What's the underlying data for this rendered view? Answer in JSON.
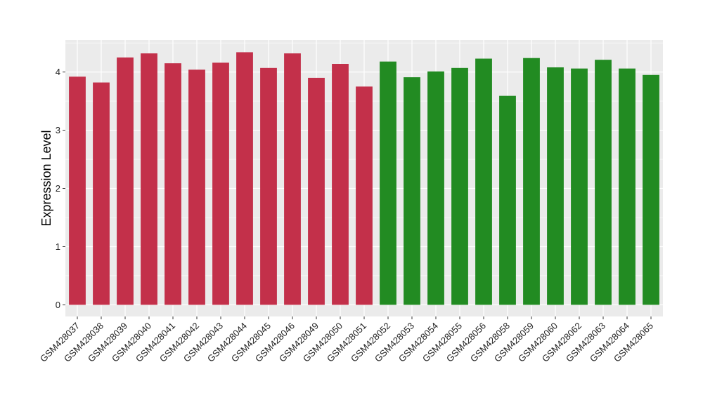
{
  "chart_data": {
    "type": "bar",
    "ylabel": "Expression Level",
    "xlabel": "",
    "title": "",
    "ylim": [
      -0.2,
      4.55
    ],
    "yticks": [
      0,
      1,
      2,
      3,
      4
    ],
    "grid": true,
    "legend": "none",
    "colors": {
      "group1": "#c3304a",
      "group2": "#228b22",
      "panel": "#ebebeb",
      "gridline": "#ffffff"
    },
    "categories": [
      "GSM428037",
      "GSM428038",
      "GSM428039",
      "GSM428040",
      "GSM428041",
      "GSM428042",
      "GSM428043",
      "GSM428044",
      "GSM428045",
      "GSM428046",
      "GSM428049",
      "GSM428050",
      "GSM428051",
      "GSM428052",
      "GSM428053",
      "GSM428054",
      "GSM428055",
      "GSM428056",
      "GSM428058",
      "GSM428059",
      "GSM428060",
      "GSM428062",
      "GSM428063",
      "GSM428064",
      "GSM428065"
    ],
    "values": [
      3.92,
      3.82,
      4.25,
      4.32,
      4.15,
      4.04,
      4.16,
      4.34,
      4.07,
      4.32,
      3.9,
      4.14,
      3.75,
      4.18,
      3.91,
      4.01,
      4.07,
      4.23,
      3.59,
      4.24,
      4.08,
      4.06,
      4.21,
      4.06,
      3.95
    ],
    "groups": [
      "group1",
      "group1",
      "group1",
      "group1",
      "group1",
      "group1",
      "group1",
      "group1",
      "group1",
      "group1",
      "group1",
      "group1",
      "group1",
      "group2",
      "group2",
      "group2",
      "group2",
      "group2",
      "group2",
      "group2",
      "group2",
      "group2",
      "group2",
      "group2",
      "group2"
    ]
  }
}
